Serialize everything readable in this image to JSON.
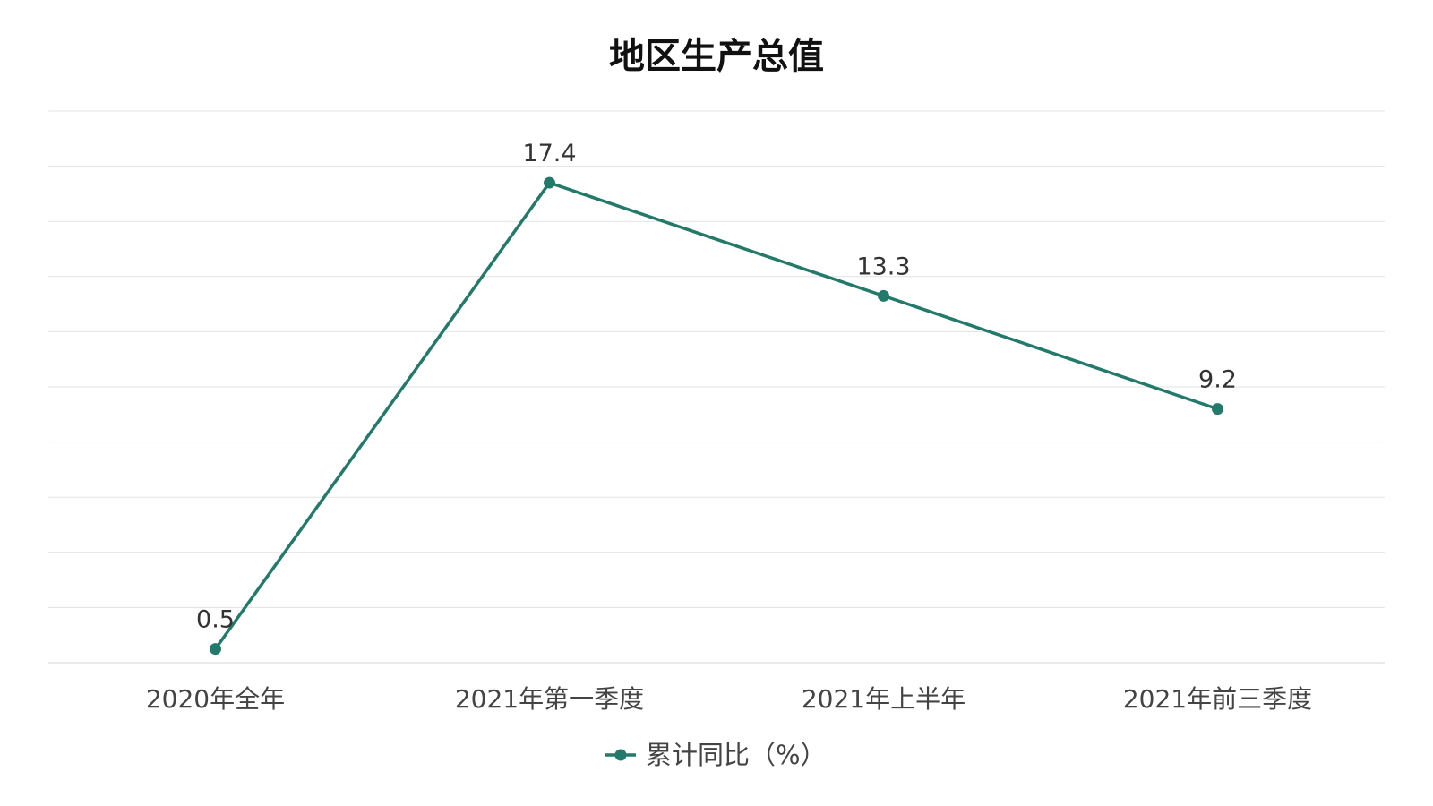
{
  "chart_data": {
    "type": "line",
    "title": "地区生产总值",
    "categories": [
      "2020年全年",
      "2021年第一季度",
      "2021年上半年",
      "2021年前三季度"
    ],
    "series": [
      {
        "name": "累计同比（%）",
        "values": [
          0.5,
          17.4,
          13.3,
          9.2
        ]
      }
    ],
    "ylim": [
      0,
      20
    ],
    "grid": true,
    "data_labels": true,
    "legend_position": "bottom",
    "colors": {
      "line": "#237a6a",
      "grid": "#e3e3e3"
    }
  }
}
